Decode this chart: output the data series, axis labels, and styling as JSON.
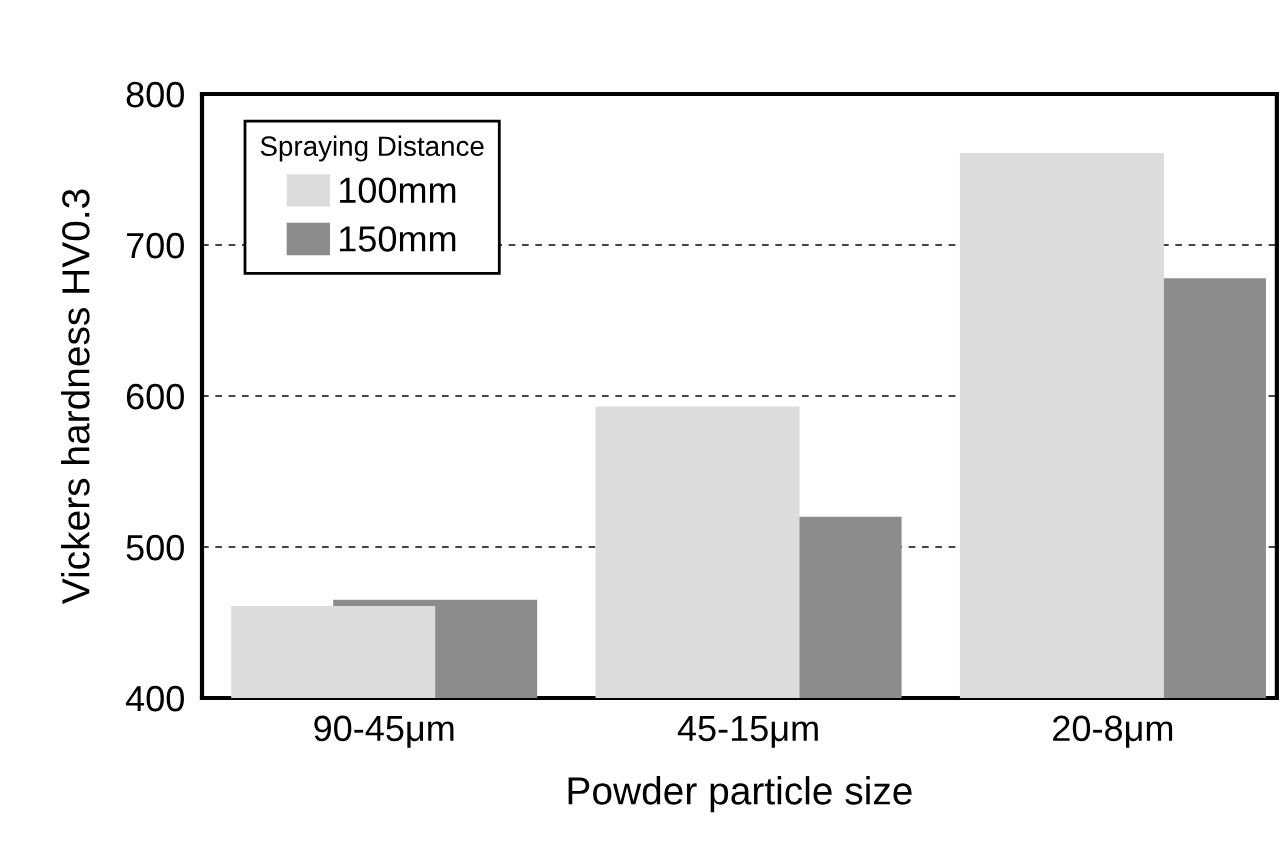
{
  "chart_data": {
    "type": "bar",
    "xlabel": "Powder particle size",
    "ylabel": "Vickers hardness HV0.3",
    "legend_title": "Spraying Distance",
    "categories": [
      "90-45μm",
      "45-15μm",
      "20-8μm"
    ],
    "series": [
      {
        "name": "100mm",
        "color": "#dcdcdc",
        "values": [
          461,
          593,
          761
        ]
      },
      {
        "name": "150mm",
        "color": "#8c8c8c",
        "values": [
          465,
          520,
          678
        ]
      }
    ],
    "ylim": [
      400,
      800
    ],
    "yticks": [
      400,
      500,
      600,
      700,
      800
    ],
    "grid": "y",
    "legend": "top left"
  }
}
